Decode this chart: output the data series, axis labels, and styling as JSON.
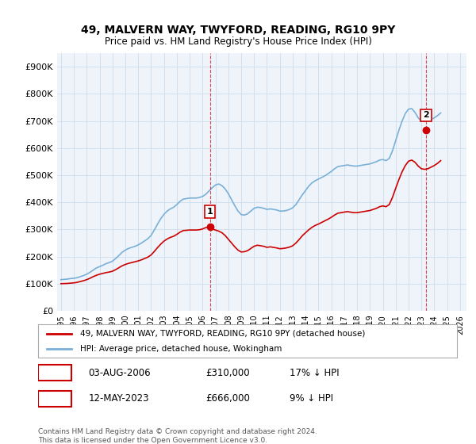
{
  "title": "49, MALVERN WAY, TWYFORD, READING, RG10 9PY",
  "subtitle": "Price paid vs. HM Land Registry's House Price Index (HPI)",
  "ylabel_ticks": [
    "£0",
    "£100K",
    "£200K",
    "£300K",
    "£400K",
    "£500K",
    "£600K",
    "£700K",
    "£800K",
    "£900K"
  ],
  "ytick_values": [
    0,
    100000,
    200000,
    300000,
    400000,
    500000,
    600000,
    700000,
    800000,
    900000
  ],
  "ylim": [
    0,
    950000
  ],
  "xlim_start": 1995.0,
  "xlim_end": 2026.5,
  "grid_color": "#ccddee",
  "background_color": "#eef4fa",
  "plot_bg_color": "#eef4fa",
  "hpi_line_color": "#7ab0d8",
  "sale_line_color": "#cc0000",
  "vline_color": "#cc0000",
  "marker1_x": 2006.58,
  "marker1_y": 310000,
  "marker1_label": "1",
  "marker2_x": 2023.36,
  "marker2_y": 666000,
  "marker2_label": "2",
  "legend_house_label": "49, MALVERN WAY, TWYFORD, READING, RG10 9PY (detached house)",
  "legend_hpi_label": "HPI: Average price, detached house, Wokingham",
  "note1_label": "1",
  "note1_date": "03-AUG-2006",
  "note1_price": "£310,000",
  "note1_change": "17% ↓ HPI",
  "note2_label": "2",
  "note2_date": "12-MAY-2023",
  "note2_price": "£666,000",
  "note2_change": "9% ↓ HPI",
  "footer": "Contains HM Land Registry data © Crown copyright and database right 2024.\nThis data is licensed under the Open Government Licence v3.0.",
  "hpi_data_x": [
    1995.0,
    1995.25,
    1995.5,
    1995.75,
    1996.0,
    1996.25,
    1996.5,
    1996.75,
    1997.0,
    1997.25,
    1997.5,
    1997.75,
    1998.0,
    1998.25,
    1998.5,
    1998.75,
    1999.0,
    1999.25,
    1999.5,
    1999.75,
    2000.0,
    2000.25,
    2000.5,
    2000.75,
    2001.0,
    2001.25,
    2001.5,
    2001.75,
    2002.0,
    2002.25,
    2002.5,
    2002.75,
    2003.0,
    2003.25,
    2003.5,
    2003.75,
    2004.0,
    2004.25,
    2004.5,
    2004.75,
    2005.0,
    2005.25,
    2005.5,
    2005.75,
    2006.0,
    2006.25,
    2006.5,
    2006.75,
    2007.0,
    2007.25,
    2007.5,
    2007.75,
    2008.0,
    2008.25,
    2008.5,
    2008.75,
    2009.0,
    2009.25,
    2009.5,
    2009.75,
    2010.0,
    2010.25,
    2010.5,
    2010.75,
    2011.0,
    2011.25,
    2011.5,
    2011.75,
    2012.0,
    2012.25,
    2012.5,
    2012.75,
    2013.0,
    2013.25,
    2013.5,
    2013.75,
    2014.0,
    2014.25,
    2014.5,
    2014.75,
    2015.0,
    2015.25,
    2015.5,
    2015.75,
    2016.0,
    2016.25,
    2016.5,
    2016.75,
    2017.0,
    2017.25,
    2017.5,
    2017.75,
    2018.0,
    2018.25,
    2018.5,
    2018.75,
    2019.0,
    2019.25,
    2019.5,
    2019.75,
    2020.0,
    2020.25,
    2020.5,
    2020.75,
    2021.0,
    2021.25,
    2021.5,
    2021.75,
    2022.0,
    2022.25,
    2022.5,
    2022.75,
    2023.0,
    2023.25,
    2023.5,
    2023.75,
    2024.0,
    2024.25,
    2024.5
  ],
  "hpi_data_y": [
    115000,
    116000,
    117000,
    119000,
    120000,
    122000,
    126000,
    130000,
    135000,
    142000,
    150000,
    158000,
    163000,
    168000,
    174000,
    178000,
    183000,
    193000,
    204000,
    216000,
    224000,
    230000,
    234000,
    238000,
    243000,
    250000,
    258000,
    266000,
    278000,
    298000,
    320000,
    340000,
    356000,
    368000,
    376000,
    382000,
    392000,
    404000,
    412000,
    414000,
    416000,
    416000,
    416000,
    418000,
    422000,
    430000,
    442000,
    454000,
    464000,
    468000,
    462000,
    450000,
    432000,
    410000,
    388000,
    368000,
    355000,
    353000,
    358000,
    368000,
    378000,
    382000,
    381000,
    378000,
    374000,
    376000,
    374000,
    372000,
    368000,
    368000,
    370000,
    374000,
    380000,
    392000,
    410000,
    428000,
    444000,
    460000,
    472000,
    480000,
    486000,
    492000,
    498000,
    506000,
    514000,
    524000,
    532000,
    534000,
    536000,
    538000,
    536000,
    534000,
    534000,
    536000,
    538000,
    540000,
    542000,
    546000,
    550000,
    556000,
    558000,
    554000,
    562000,
    590000,
    628000,
    666000,
    700000,
    728000,
    744000,
    746000,
    732000,
    712000,
    700000,
    698000,
    700000,
    706000,
    712000,
    720000,
    730000
  ],
  "sale_data_x": [
    1995.0,
    1995.25,
    1995.5,
    1995.75,
    1996.0,
    1996.25,
    1996.5,
    1996.75,
    1997.0,
    1997.25,
    1997.5,
    1997.75,
    1998.0,
    1998.25,
    1998.5,
    1998.75,
    1999.0,
    1999.25,
    1999.5,
    1999.75,
    2000.0,
    2000.25,
    2000.5,
    2000.75,
    2001.0,
    2001.25,
    2001.5,
    2001.75,
    2002.0,
    2002.25,
    2002.5,
    2002.75,
    2003.0,
    2003.25,
    2003.5,
    2003.75,
    2004.0,
    2004.25,
    2004.5,
    2004.75,
    2005.0,
    2005.25,
    2005.5,
    2005.75,
    2006.0,
    2006.25,
    2006.5,
    2006.75,
    2007.0,
    2007.25,
    2007.5,
    2007.75,
    2008.0,
    2008.25,
    2008.5,
    2008.75,
    2009.0,
    2009.25,
    2009.5,
    2009.75,
    2010.0,
    2010.25,
    2010.5,
    2010.75,
    2011.0,
    2011.25,
    2011.5,
    2011.75,
    2012.0,
    2012.25,
    2012.5,
    2012.75,
    2013.0,
    2013.25,
    2013.5,
    2013.75,
    2014.0,
    2014.25,
    2014.5,
    2014.75,
    2015.0,
    2015.25,
    2015.5,
    2015.75,
    2016.0,
    2016.25,
    2016.5,
    2016.75,
    2017.0,
    2017.25,
    2017.5,
    2017.75,
    2018.0,
    2018.25,
    2018.5,
    2018.75,
    2019.0,
    2019.25,
    2019.5,
    2019.75,
    2020.0,
    2020.25,
    2020.5,
    2020.75,
    2021.0,
    2021.25,
    2021.5,
    2021.75,
    2022.0,
    2022.25,
    2022.5,
    2022.75,
    2023.0,
    2023.25,
    2023.5,
    2023.75,
    2024.0,
    2024.25,
    2024.5
  ],
  "sale_data_y": [
    100000,
    100500,
    101000,
    102000,
    103000,
    105000,
    108000,
    111000,
    115000,
    120000,
    126000,
    131000,
    135000,
    138000,
    141000,
    143000,
    146000,
    152000,
    159000,
    166000,
    171000,
    175000,
    178000,
    181000,
    184000,
    188000,
    193000,
    198000,
    206000,
    219000,
    233000,
    246000,
    257000,
    265000,
    271000,
    275000,
    282000,
    290000,
    296000,
    297000,
    298000,
    298000,
    298000,
    299000,
    302000,
    307000,
    310000,
    302000,
    298000,
    294000,
    288000,
    278000,
    264000,
    250000,
    236000,
    224000,
    217000,
    218000,
    222000,
    230000,
    238000,
    242000,
    240000,
    238000,
    234000,
    236000,
    234000,
    232000,
    229000,
    230000,
    232000,
    235000,
    240000,
    250000,
    263000,
    277000,
    288000,
    299000,
    308000,
    315000,
    320000,
    326000,
    332000,
    338000,
    345000,
    353000,
    360000,
    362000,
    364000,
    366000,
    364000,
    362000,
    362000,
    364000,
    366000,
    368000,
    370000,
    374000,
    378000,
    384000,
    387000,
    384000,
    392000,
    418000,
    452000,
    484000,
    513000,
    536000,
    552000,
    556000,
    548000,
    534000,
    524000,
    522000,
    524000,
    530000,
    536000,
    544000,
    554000
  ],
  "xtick_years": [
    1995,
    1996,
    1997,
    1998,
    1999,
    2000,
    2001,
    2002,
    2003,
    2004,
    2005,
    2006,
    2007,
    2008,
    2009,
    2010,
    2011,
    2012,
    2013,
    2014,
    2015,
    2016,
    2017,
    2018,
    2019,
    2020,
    2021,
    2022,
    2023,
    2024,
    2025,
    2026
  ]
}
